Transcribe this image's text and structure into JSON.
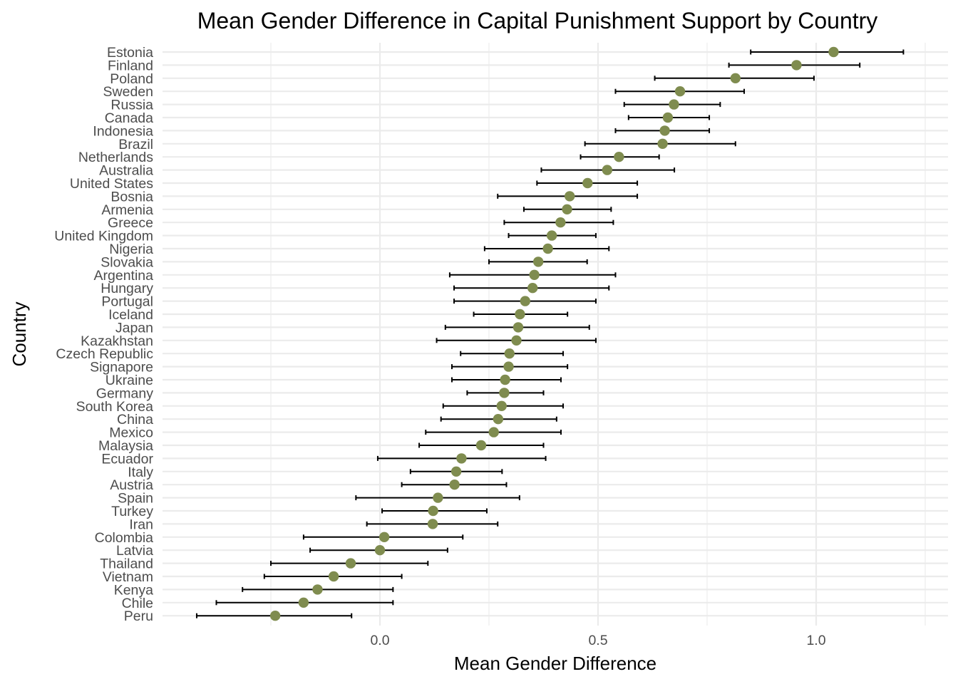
{
  "chart_data": {
    "type": "scatter",
    "subtype": "dot-with-error-bars",
    "title": "Mean Gender Difference in Capital Punishment Support by Country",
    "xlabel": "Mean Gender Difference",
    "ylabel": "Country",
    "xlim": [
      -0.5,
      1.3
    ],
    "x_ticks": [
      0.0,
      0.5,
      1.0
    ],
    "x_tick_labels": [
      "0.0",
      "0.5",
      "1.0"
    ],
    "grid": true,
    "point_color": "#7f8c4f",
    "bar_color": "#000000",
    "grid_color": "#ebebeb",
    "categories": [
      "Estonia",
      "Finland",
      "Poland",
      "Sweden",
      "Russia",
      "Canada",
      "Indonesia",
      "Brazil",
      "Netherlands",
      "Australia",
      "United States",
      "Bosnia",
      "Armenia",
      "Greece",
      "United Kingdom",
      "Nigeria",
      "Slovakia",
      "Argentina",
      "Hungary",
      "Portugal",
      "Iceland",
      "Japan",
      "Kazakhstan",
      "Czech Republic",
      "Signapore",
      "Ukraine",
      "Germany",
      "South Korea",
      "China",
      "Mexico",
      "Malaysia",
      "Ecuador",
      "Italy",
      "Austria",
      "Spain",
      "Turkey",
      "Iran",
      "Colombia",
      "Latvia",
      "Thailand",
      "Vietnam",
      "Kenya",
      "Chile",
      "Peru"
    ],
    "means": [
      1.04,
      0.955,
      0.815,
      0.688,
      0.674,
      0.66,
      0.653,
      0.648,
      0.548,
      0.521,
      0.476,
      0.435,
      0.429,
      0.414,
      0.394,
      0.385,
      0.363,
      0.354,
      0.35,
      0.333,
      0.321,
      0.317,
      0.313,
      0.297,
      0.295,
      0.287,
      0.285,
      0.279,
      0.271,
      0.261,
      0.232,
      0.187,
      0.175,
      0.171,
      0.133,
      0.122,
      0.121,
      0.01,
      0.0,
      -0.067,
      -0.106,
      -0.143,
      -0.175,
      -0.24
    ],
    "lower": [
      0.85,
      0.8,
      0.63,
      0.54,
      0.56,
      0.57,
      0.54,
      0.47,
      0.46,
      0.37,
      0.36,
      0.27,
      0.33,
      0.285,
      0.295,
      0.24,
      0.25,
      0.16,
      0.17,
      0.17,
      0.215,
      0.15,
      0.13,
      0.185,
      0.165,
      0.165,
      0.2,
      0.145,
      0.14,
      0.105,
      0.09,
      -0.005,
      0.07,
      0.05,
      -0.055,
      0.005,
      -0.03,
      -0.175,
      -0.16,
      -0.25,
      -0.265,
      -0.315,
      -0.375,
      -0.42
    ],
    "upper": [
      1.2,
      1.1,
      0.995,
      0.835,
      0.78,
      0.755,
      0.755,
      0.815,
      0.64,
      0.675,
      0.59,
      0.59,
      0.53,
      0.535,
      0.495,
      0.525,
      0.475,
      0.54,
      0.525,
      0.495,
      0.43,
      0.48,
      0.495,
      0.42,
      0.43,
      0.415,
      0.375,
      0.42,
      0.405,
      0.415,
      0.375,
      0.38,
      0.28,
      0.29,
      0.32,
      0.245,
      0.27,
      0.19,
      0.155,
      0.11,
      0.05,
      0.03,
      0.03,
      -0.065
    ]
  }
}
